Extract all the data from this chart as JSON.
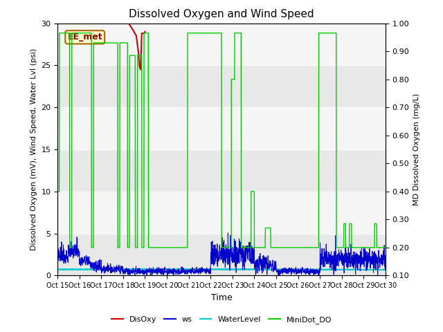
{
  "title": "Dissolved Oxygen and Wind Speed",
  "xlabel": "Time",
  "ylabel_left": "Dissolved Oxygen (mV), Wind Speed, Water Lvl (psi)",
  "ylabel_right": "MD Dissolved Oxygen (mg/L)",
  "annotation_box": "EE_met",
  "xlim": [
    0,
    15
  ],
  "ylim_left": [
    0,
    30
  ],
  "ylim_right": [
    0.1,
    1.0
  ],
  "xtick_labels": [
    "Oct 15",
    "Oct 16",
    "Oct 17",
    "Oct 18",
    "Oct 19",
    "Oct 20",
    "Oct 21",
    "Oct 22",
    "Oct 23",
    "Oct 24",
    "Oct 25",
    "Oct 26",
    "Oct 27",
    "Oct 28",
    "Oct 29",
    "Oct 30"
  ],
  "ytick_left": [
    0,
    5,
    10,
    15,
    20,
    25,
    30
  ],
  "ytick_right": [
    0.1,
    0.2,
    0.3,
    0.4,
    0.5,
    0.6,
    0.7,
    0.8,
    0.9,
    1.0
  ],
  "bg_dark": "#e8e8e8",
  "bg_light": "#f5f5f5",
  "grid_color": "#ffffff",
  "colors": {
    "DisOxy": "#cc0000",
    "ws": "#0000cc",
    "WaterLevel": "#00cccc",
    "MiniDot_DO": "#00cc00"
  },
  "minidot_high": 0.965,
  "minidot_low": 0.2,
  "wl_level": 0.75,
  "disoxy_x": [
    3.25,
    3.45,
    3.6,
    3.7,
    3.75,
    3.8,
    3.85,
    3.95,
    4.0
  ],
  "disoxy_y": [
    30.0,
    29.2,
    28.5,
    26.5,
    24.8,
    24.5,
    28.8,
    28.8,
    29.0
  ]
}
